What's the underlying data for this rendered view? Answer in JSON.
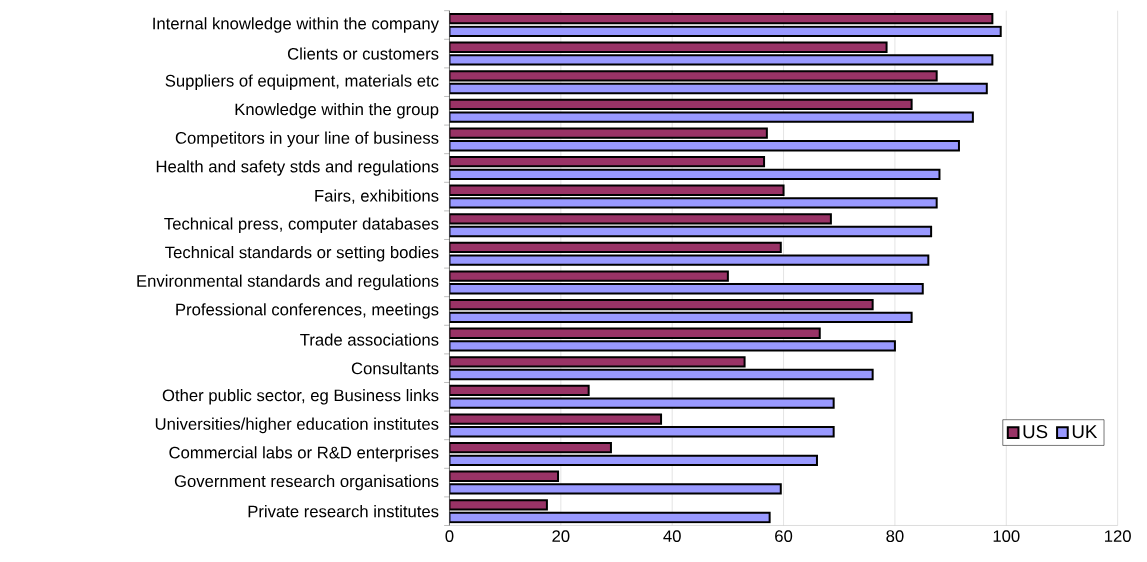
{
  "chart_data": {
    "type": "bar",
    "orientation": "horizontal",
    "categories": [
      "Internal knowledge within the company",
      "Clients or customers",
      "Suppliers of equipment, materials etc",
      "Knowledge within the group",
      "Competitors in your line of business",
      "Health and safety stds and regulations",
      "Fairs, exhibitions",
      "Technical press, computer databases",
      "Technical standards or setting bodies",
      "Environmental standards and regulations",
      "Professional conferences, meetings",
      "Trade associations",
      "Consultants",
      "Other public sector, eg Business links",
      "Universities/higher education institutes",
      "Commercial labs or R&D enterprises",
      "Government research organisations",
      "Private research institutes"
    ],
    "series": [
      {
        "name": "US",
        "color": "#993366",
        "values": [
          97.5,
          78.5,
          87.5,
          83,
          57,
          56.5,
          60,
          68.5,
          59.5,
          50,
          76,
          66.5,
          53,
          25,
          38,
          29,
          19.5,
          17.5
        ]
      },
      {
        "name": "UK",
        "color": "#9999ff",
        "values": [
          99,
          97.5,
          96.5,
          94,
          91.5,
          88,
          87.5,
          86.5,
          86,
          85,
          83,
          80,
          76,
          69,
          69,
          66,
          59.5,
          57.5
        ]
      }
    ],
    "xlim": [
      0,
      120
    ],
    "xticks": [
      0,
      20,
      40,
      60,
      80,
      100,
      120
    ],
    "grid": "x",
    "legend": "bottom right"
  }
}
